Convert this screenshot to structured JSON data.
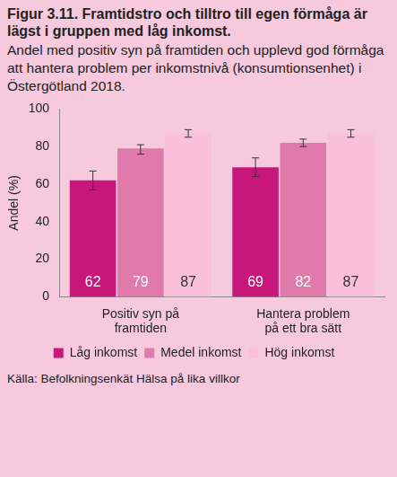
{
  "chart_data": {
    "type": "bar",
    "title": "Figur 3.11. Framtidstro och tilltro till egen förmåga är lägst i gruppen med låg inkomst.",
    "subtitle": "Andel med positiv syn på framtiden och upplevd god förmåga att hantera problem per inkomstnivå (konsumtionsenhet) i Östergötland 2018.",
    "y_label": "Andel (%)",
    "source": "Källa: Befolkningsenkät Hälsa på lika villkor",
    "categories": [
      "Positiv syn på framtiden",
      "Hantera problem på ett bra sätt"
    ],
    "series": [
      {
        "name": "Låg inkomst",
        "color": "#c8177b",
        "values": [
          62,
          69
        ],
        "error_low": [
          57,
          64
        ],
        "error_high": [
          67,
          74
        ]
      },
      {
        "name": "Medel inkomst",
        "color": "#e07aab",
        "values": [
          79,
          82
        ],
        "error_low": [
          76,
          80
        ],
        "error_high": [
          81,
          84
        ]
      },
      {
        "name": "Hög inkomst",
        "color": "#f9bfdb",
        "values": [
          87,
          87
        ],
        "error_low": [
          85,
          85
        ],
        "error_high": [
          89,
          89
        ]
      }
    ],
    "ylim": [
      0,
      100
    ],
    "yticks": [
      0,
      20,
      40,
      60,
      80,
      100
    ],
    "grid": false,
    "legend": "bottom",
    "data_labels": true
  }
}
